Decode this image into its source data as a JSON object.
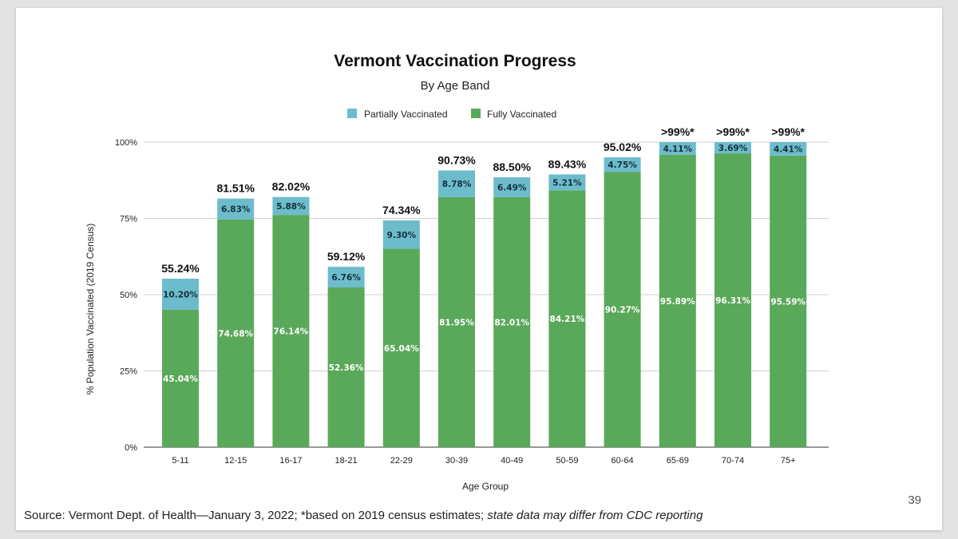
{
  "slide": {
    "page_number": "39",
    "source_text": "Source: Vermont Dept. of Health—January 3, 2022; *based on 2019 census estimates; ",
    "source_italic": "state data may differ from CDC reporting"
  },
  "chart_data": {
    "type": "bar",
    "stacked": true,
    "title": "Vermont Vaccination Progress",
    "subtitle": "By Age Band",
    "xlabel": "Age Group",
    "ylabel": "% Population Vaccinated (2019 Census)",
    "ylim": [
      0,
      100
    ],
    "yticks": [
      0,
      25,
      50,
      75,
      100
    ],
    "ytick_labels": [
      "0%",
      "25%",
      "50%",
      "75%",
      "100%"
    ],
    "categories": [
      "5-11",
      "12-15",
      "16-17",
      "18-21",
      "22-29",
      "30-39",
      "40-49",
      "50-59",
      "60-64",
      "65-69",
      "70-74",
      "75+"
    ],
    "series": [
      {
        "name": "Fully Vaccinated",
        "color": "#5aa85a",
        "values": [
          45.04,
          74.68,
          76.14,
          52.36,
          65.04,
          81.95,
          82.01,
          84.21,
          90.27,
          95.89,
          96.31,
          95.59
        ],
        "labels": [
          "45.04%",
          "74.68%",
          "76.14%",
          "52.36%",
          "65.04%",
          "81.95%",
          "82.01%",
          "84.21%",
          "90.27%",
          "95.89%",
          "96.31%",
          "95.59%"
        ]
      },
      {
        "name": "Partially Vaccinated",
        "color": "#6dbccc",
        "values": [
          10.2,
          6.83,
          5.88,
          6.76,
          9.3,
          8.78,
          6.49,
          5.21,
          4.75,
          4.11,
          3.69,
          4.41
        ],
        "labels": [
          "10.20%",
          "6.83%",
          "5.88%",
          "6.76%",
          "9.30%",
          "8.78%",
          "6.49%",
          "5.21%",
          "4.75%",
          "4.11%",
          "3.69%",
          "4.41%"
        ]
      }
    ],
    "legend": [
      "Partially Vaccinated",
      "Fully Vaccinated"
    ],
    "legend_position": "top",
    "totals": [
      "55.24%",
      "81.51%",
      "82.02%",
      "59.12%",
      "74.34%",
      "90.73%",
      "88.50%",
      "89.43%",
      "95.02%",
      ">99%*",
      ">99%*",
      ">99%*"
    ],
    "grid": true
  }
}
